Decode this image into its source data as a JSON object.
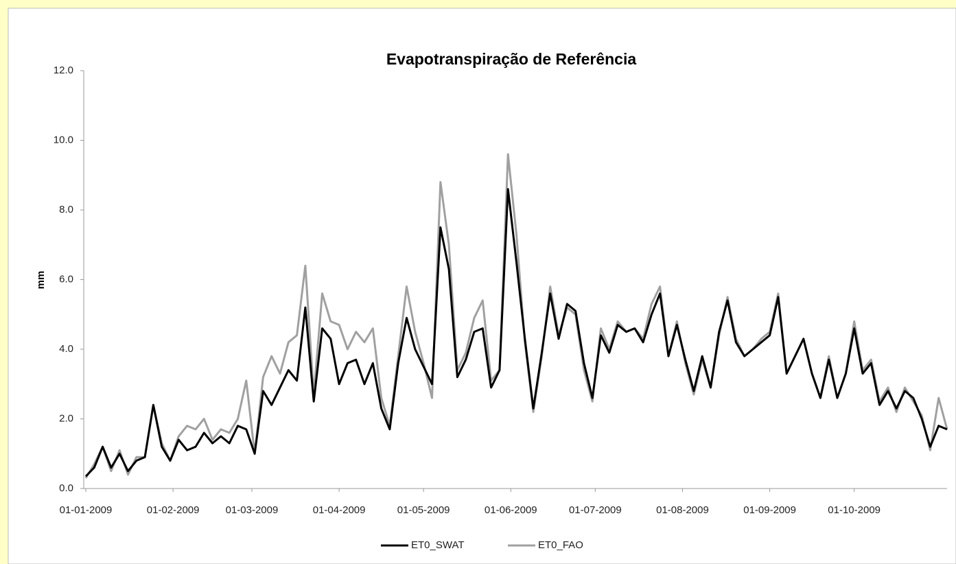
{
  "chart_data": {
    "type": "line",
    "title": "Evapotranspiração de Referência",
    "y_label": "mm",
    "x": [
      "01-01-2009",
      "04-01-2009",
      "07-01-2009",
      "10-01-2009",
      "13-01-2009",
      "16-01-2009",
      "19-01-2009",
      "22-01-2009",
      "25-01-2009",
      "28-01-2009",
      "31-01-2009",
      "03-02-2009",
      "06-02-2009",
      "09-02-2009",
      "12-02-2009",
      "15-02-2009",
      "18-02-2009",
      "21-02-2009",
      "24-02-2009",
      "27-02-2009",
      "02-03-2009",
      "05-03-2009",
      "08-03-2009",
      "11-03-2009",
      "14-03-2009",
      "17-03-2009",
      "20-03-2009",
      "23-03-2009",
      "26-03-2009",
      "29-03-2009",
      "01-04-2009",
      "04-04-2009",
      "07-04-2009",
      "10-04-2009",
      "13-04-2009",
      "16-04-2009",
      "19-04-2009",
      "22-04-2009",
      "25-04-2009",
      "28-04-2009",
      "01-05-2009",
      "04-05-2009",
      "07-05-2009",
      "10-05-2009",
      "13-05-2009",
      "16-05-2009",
      "19-05-2009",
      "22-05-2009",
      "25-05-2009",
      "28-05-2009",
      "31-05-2009",
      "03-06-2009",
      "06-06-2009",
      "09-06-2009",
      "12-06-2009",
      "15-06-2009",
      "18-06-2009",
      "21-06-2009",
      "24-06-2009",
      "27-06-2009",
      "30-06-2009",
      "03-07-2009",
      "06-07-2009",
      "09-07-2009",
      "12-07-2009",
      "15-07-2009",
      "18-07-2009",
      "21-07-2009",
      "24-07-2009",
      "27-07-2009",
      "30-07-2009",
      "02-08-2009",
      "05-08-2009",
      "08-08-2009",
      "11-08-2009",
      "14-08-2009",
      "17-08-2009",
      "20-08-2009",
      "23-08-2009",
      "26-08-2009",
      "29-08-2009",
      "01-09-2009",
      "04-09-2009",
      "07-09-2009",
      "10-09-2009",
      "13-09-2009",
      "16-09-2009",
      "19-09-2009",
      "22-09-2009",
      "25-09-2009",
      "28-09-2009",
      "01-10-2009",
      "04-10-2009",
      "07-10-2009",
      "10-10-2009",
      "13-10-2009",
      "16-10-2009",
      "19-10-2009",
      "22-10-2009",
      "25-10-2009",
      "28-10-2009",
      "31-10-2009",
      "03-11-2009"
    ],
    "series": [
      {
        "name": "ET0_SWAT",
        "color": "#000000",
        "values": [
          0.35,
          0.6,
          1.2,
          0.6,
          1.0,
          0.5,
          0.8,
          0.9,
          2.4,
          1.2,
          0.8,
          1.4,
          1.1,
          1.2,
          1.6,
          1.3,
          1.5,
          1.3,
          1.8,
          1.7,
          1.0,
          2.8,
          2.4,
          2.9,
          3.4,
          3.1,
          5.2,
          2.5,
          4.6,
          4.3,
          3.0,
          3.6,
          3.7,
          3.0,
          3.6,
          2.3,
          1.7,
          3.6,
          4.9,
          4.0,
          3.5,
          3.0,
          7.5,
          6.3,
          3.2,
          3.7,
          4.5,
          4.6,
          2.9,
          3.4,
          8.6,
          6.5,
          4.3,
          2.3,
          3.9,
          5.6,
          4.3,
          5.3,
          5.1,
          3.6,
          2.6,
          4.4,
          3.9,
          4.7,
          4.5,
          4.6,
          4.2,
          5.0,
          5.6,
          3.8,
          4.7,
          3.7,
          2.8,
          3.8,
          2.9,
          4.5,
          5.4,
          4.2,
          3.8,
          4.0,
          4.2,
          4.4,
          5.5,
          3.3,
          3.8,
          4.3,
          3.3,
          2.6,
          3.7,
          2.6,
          3.3,
          4.6,
          3.3,
          3.6,
          2.4,
          2.8,
          2.3,
          2.8,
          2.6,
          2.0,
          1.2,
          1.8,
          1.7
        ]
      },
      {
        "name": "ET0_FAO",
        "color": "#a0a0a0",
        "values": [
          0.3,
          0.7,
          1.2,
          0.5,
          1.1,
          0.4,
          0.9,
          0.9,
          2.4,
          1.3,
          0.8,
          1.5,
          1.8,
          1.7,
          2.0,
          1.4,
          1.7,
          1.6,
          2.0,
          3.1,
          1.0,
          3.2,
          3.8,
          3.3,
          4.2,
          4.4,
          6.4,
          2.7,
          5.6,
          4.8,
          4.7,
          4.0,
          4.5,
          4.2,
          4.6,
          2.6,
          1.8,
          3.8,
          5.8,
          4.5,
          3.6,
          2.6,
          8.8,
          7.0,
          3.4,
          3.9,
          4.9,
          5.4,
          3.1,
          3.4,
          9.6,
          7.3,
          4.2,
          2.2,
          3.8,
          5.8,
          4.4,
          5.2,
          5.0,
          3.4,
          2.5,
          4.6,
          4.0,
          4.8,
          4.5,
          4.6,
          4.3,
          5.3,
          5.8,
          3.8,
          4.8,
          3.6,
          2.7,
          3.7,
          2.9,
          4.4,
          5.5,
          4.3,
          3.8,
          4.0,
          4.3,
          4.5,
          5.6,
          3.3,
          3.8,
          4.3,
          3.3,
          2.6,
          3.8,
          2.6,
          3.3,
          4.8,
          3.4,
          3.7,
          2.5,
          2.9,
          2.2,
          2.9,
          2.5,
          2.1,
          1.1,
          2.6,
          1.7
        ]
      }
    ],
    "xlim": [
      "01-01-2009",
      "03-11-2009"
    ],
    "xticks": [
      "01-01-2009",
      "01-02-2009",
      "01-03-2009",
      "01-04-2009",
      "01-05-2009",
      "01-06-2009",
      "01-07-2009",
      "01-08-2009",
      "01-09-2009",
      "01-10-2009"
    ],
    "ylim": [
      0,
      12
    ],
    "yticks": [
      {
        "value": 0,
        "label": "0.0"
      },
      {
        "value": 2,
        "label": "2.0"
      },
      {
        "value": 4,
        "label": "4.0"
      },
      {
        "value": 6,
        "label": "6.0"
      },
      {
        "value": 8,
        "label": "8.0"
      },
      {
        "value": 10,
        "label": "10.0"
      },
      {
        "value": 12,
        "label": "12.0"
      }
    ],
    "grid": false,
    "legend": "bottom"
  }
}
